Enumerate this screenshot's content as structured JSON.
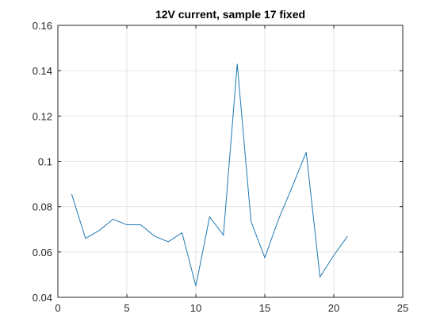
{
  "chart_data": {
    "type": "line",
    "title": "12V current, sample 17 fixed",
    "xlabel": "",
    "ylabel": "",
    "xlim": [
      0,
      25
    ],
    "ylim": [
      0.04,
      0.16
    ],
    "x_ticks": [
      0,
      5,
      10,
      15,
      20,
      25
    ],
    "y_ticks": [
      0.04,
      0.06,
      0.08,
      0.1,
      0.12,
      0.14,
      0.16
    ],
    "x_tick_labels": [
      "0",
      "5",
      "10",
      "15",
      "20",
      "25"
    ],
    "y_tick_labels": [
      "0.04",
      "0.06",
      "0.08",
      "0.1",
      "0.12",
      "0.14",
      "0.16"
    ],
    "grid": true,
    "series": [
      {
        "color": "#1f77b4",
        "x": [
          1,
          2,
          3,
          4,
          5,
          6,
          7,
          8,
          9,
          10,
          11,
          12,
          13,
          14,
          15,
          16,
          17,
          18,
          19,
          20,
          21
        ],
        "y": [
          0.0855,
          0.066,
          0.0695,
          0.0745,
          0.072,
          0.072,
          0.067,
          0.0645,
          0.0685,
          0.045,
          0.0755,
          0.0675,
          0.143,
          0.0735,
          0.0575,
          0.0745,
          0.089,
          0.104,
          0.049,
          0.0585,
          0.067
        ]
      }
    ]
  }
}
